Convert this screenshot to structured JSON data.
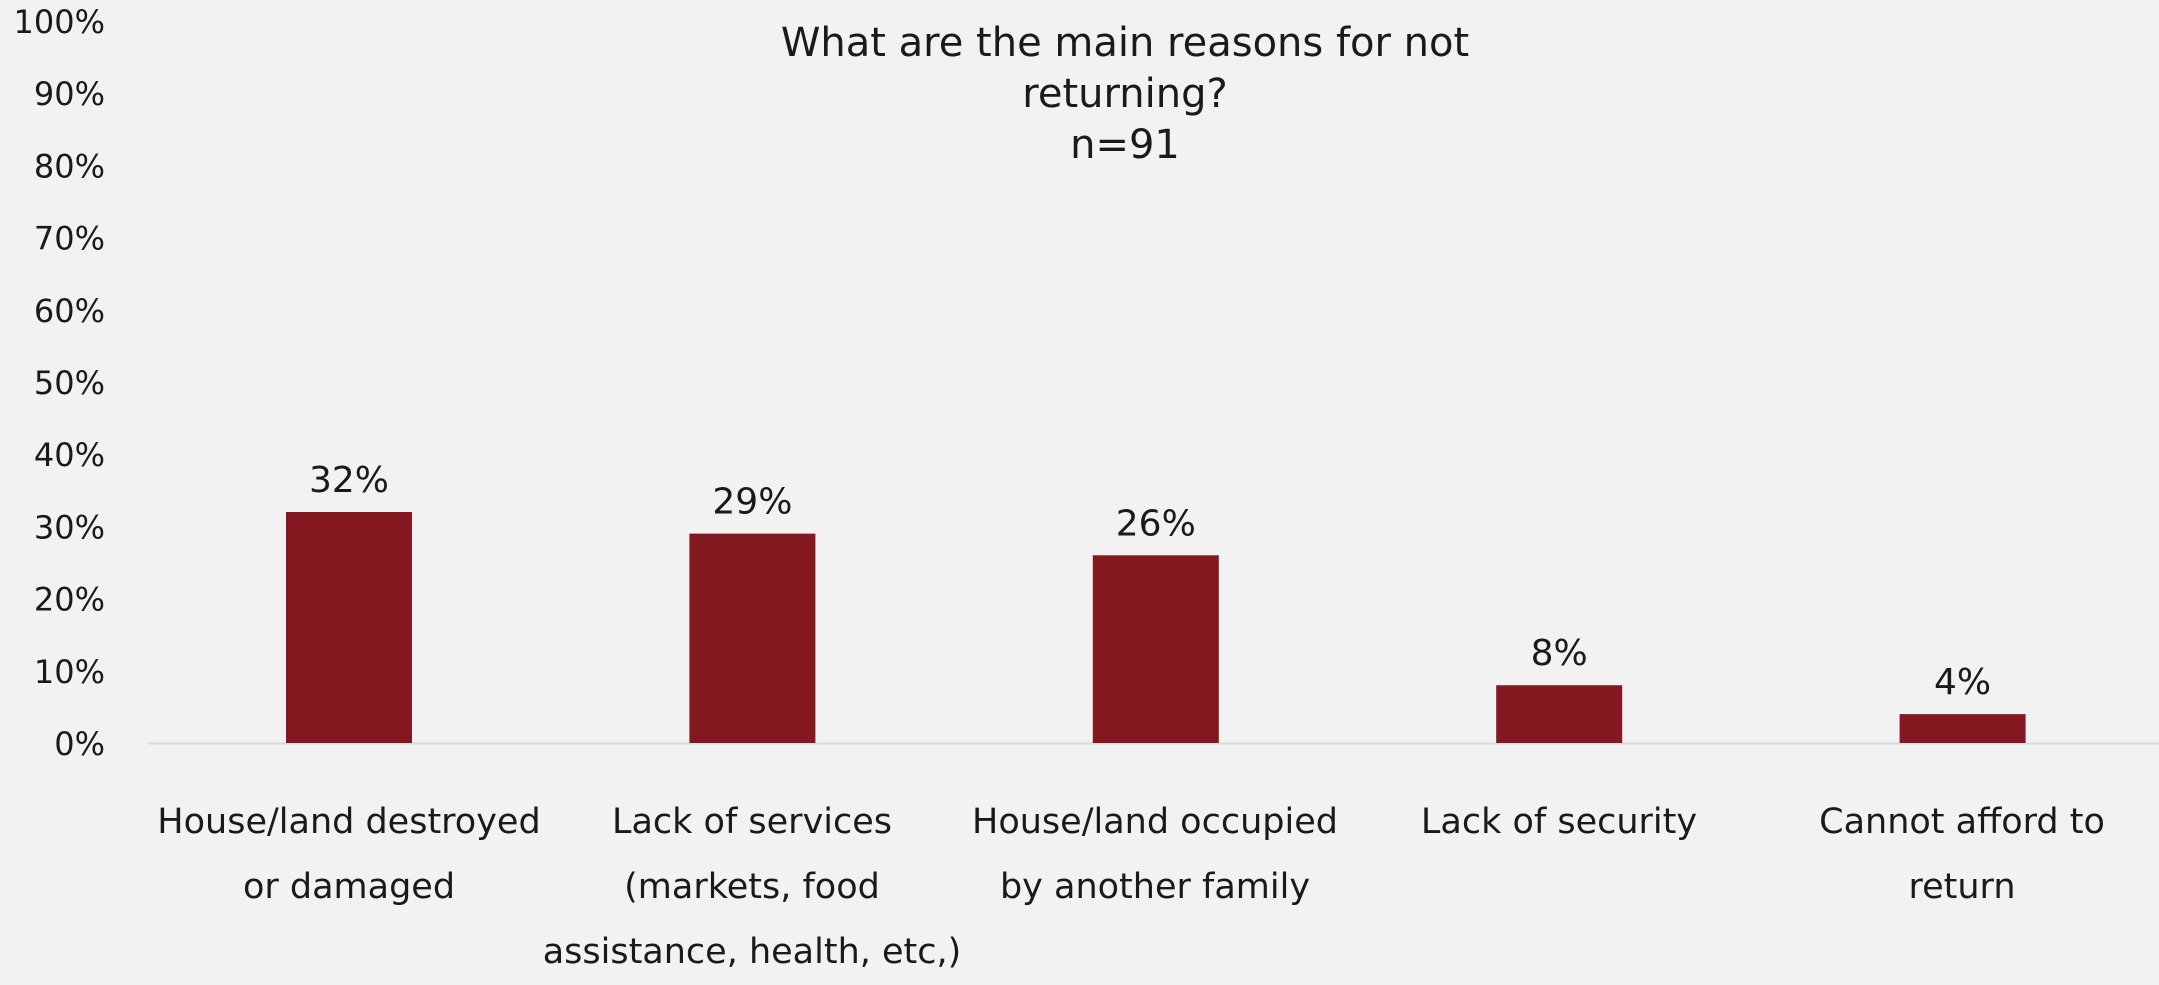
{
  "chart_data": {
    "type": "bar",
    "title_lines": [
      "What are the main reasons for not",
      "returning?",
      "n=91"
    ],
    "categories": [
      [
        "House/land destroyed",
        "or damaged"
      ],
      [
        "Lack of services",
        "(markets, food",
        "assistance, health, etc,)"
      ],
      [
        "House/land occupied",
        "by another family"
      ],
      [
        "Lack of security"
      ],
      [
        "Cannot afford to",
        "return"
      ]
    ],
    "values": [
      32,
      29,
      26,
      8,
      4
    ],
    "data_labels": [
      "32%",
      "29%",
      "26%",
      "8%",
      "4%"
    ],
    "y_ticks": [
      "0%",
      "10%",
      "20%",
      "30%",
      "40%",
      "50%",
      "60%",
      "70%",
      "80%",
      "90%",
      "100%"
    ],
    "ylim": [
      0,
      100
    ],
    "grid": false,
    "legend": "none",
    "bar_color": "#841820"
  }
}
